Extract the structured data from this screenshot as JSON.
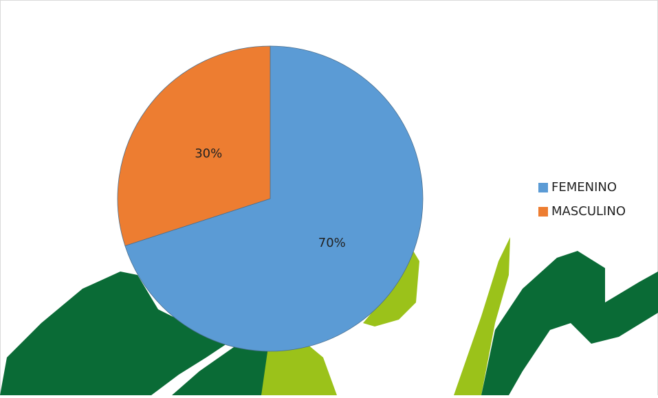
{
  "chart_data": {
    "type": "pie",
    "categories": [
      "FEMENINO",
      "MASCULINO"
    ],
    "values": [
      70,
      30
    ],
    "value_labels": [
      "70%",
      "30%"
    ],
    "colors": [
      "#5b9bd5",
      "#ed7d31"
    ],
    "legend": "right"
  }
}
